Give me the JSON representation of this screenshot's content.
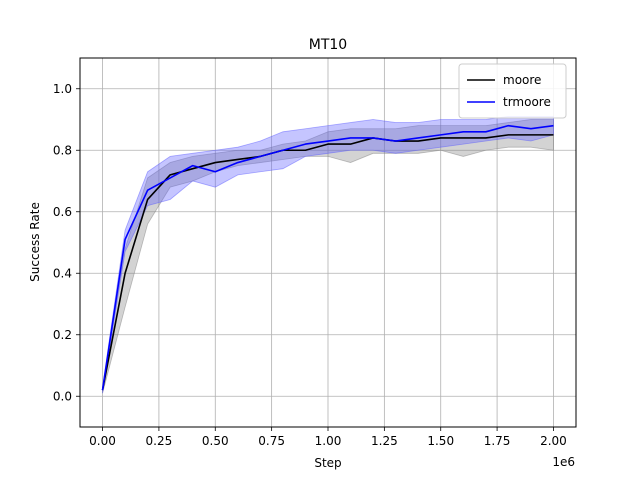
{
  "chart_data": {
    "type": "line",
    "title": "MT10",
    "xlabel": "Step",
    "ylabel": "Success Rate",
    "x_offset_label": "1e6",
    "xlim": [
      -0.1,
      2.1
    ],
    "ylim": [
      -0.1,
      1.1
    ],
    "x_ticks": [
      0.0,
      0.25,
      0.5,
      0.75,
      1.0,
      1.25,
      1.5,
      1.75,
      2.0
    ],
    "x_tick_labels": [
      "0.00",
      "0.25",
      "0.50",
      "0.75",
      "1.00",
      "1.25",
      "1.50",
      "1.75",
      "2.00"
    ],
    "y_ticks": [
      0.0,
      0.2,
      0.4,
      0.6,
      0.8,
      1.0
    ],
    "y_tick_labels": [
      "0.0",
      "0.2",
      "0.4",
      "0.6",
      "0.8",
      "1.0"
    ],
    "grid": true,
    "legend_position": "top-right",
    "x": [
      0.0,
      0.1,
      0.2,
      0.3,
      0.4,
      0.5,
      0.6,
      0.7,
      0.8,
      0.9,
      1.0,
      1.1,
      1.2,
      1.3,
      1.4,
      1.5,
      1.6,
      1.7,
      1.8,
      1.9,
      2.0
    ],
    "series": [
      {
        "name": "moore",
        "color": "#000000",
        "band_color": "#808080",
        "values": [
          0.02,
          0.4,
          0.64,
          0.72,
          0.74,
          0.76,
          0.77,
          0.78,
          0.8,
          0.8,
          0.82,
          0.82,
          0.84,
          0.83,
          0.83,
          0.84,
          0.84,
          0.84,
          0.85,
          0.85,
          0.85
        ],
        "upper": [
          0.03,
          0.48,
          0.71,
          0.76,
          0.78,
          0.79,
          0.8,
          0.8,
          0.82,
          0.83,
          0.86,
          0.87,
          0.87,
          0.87,
          0.88,
          0.88,
          0.88,
          0.88,
          0.89,
          0.9,
          0.9
        ],
        "lower": [
          0.01,
          0.29,
          0.56,
          0.68,
          0.7,
          0.73,
          0.75,
          0.76,
          0.77,
          0.78,
          0.78,
          0.76,
          0.79,
          0.79,
          0.79,
          0.8,
          0.78,
          0.8,
          0.81,
          0.81,
          0.8
        ]
      },
      {
        "name": "trmoore",
        "color": "#0000ff",
        "band_color": "#5a5aff",
        "values": [
          0.02,
          0.51,
          0.67,
          0.71,
          0.75,
          0.73,
          0.76,
          0.78,
          0.8,
          0.82,
          0.83,
          0.84,
          0.84,
          0.83,
          0.84,
          0.85,
          0.86,
          0.86,
          0.88,
          0.87,
          0.88
        ],
        "upper": [
          0.03,
          0.54,
          0.73,
          0.78,
          0.79,
          0.8,
          0.81,
          0.83,
          0.86,
          0.87,
          0.88,
          0.89,
          0.9,
          0.89,
          0.89,
          0.9,
          0.9,
          0.9,
          0.91,
          0.91,
          0.91
        ],
        "lower": [
          0.01,
          0.47,
          0.62,
          0.64,
          0.7,
          0.68,
          0.72,
          0.73,
          0.74,
          0.78,
          0.79,
          0.8,
          0.8,
          0.79,
          0.8,
          0.81,
          0.82,
          0.83,
          0.84,
          0.83,
          0.85
        ]
      }
    ]
  }
}
